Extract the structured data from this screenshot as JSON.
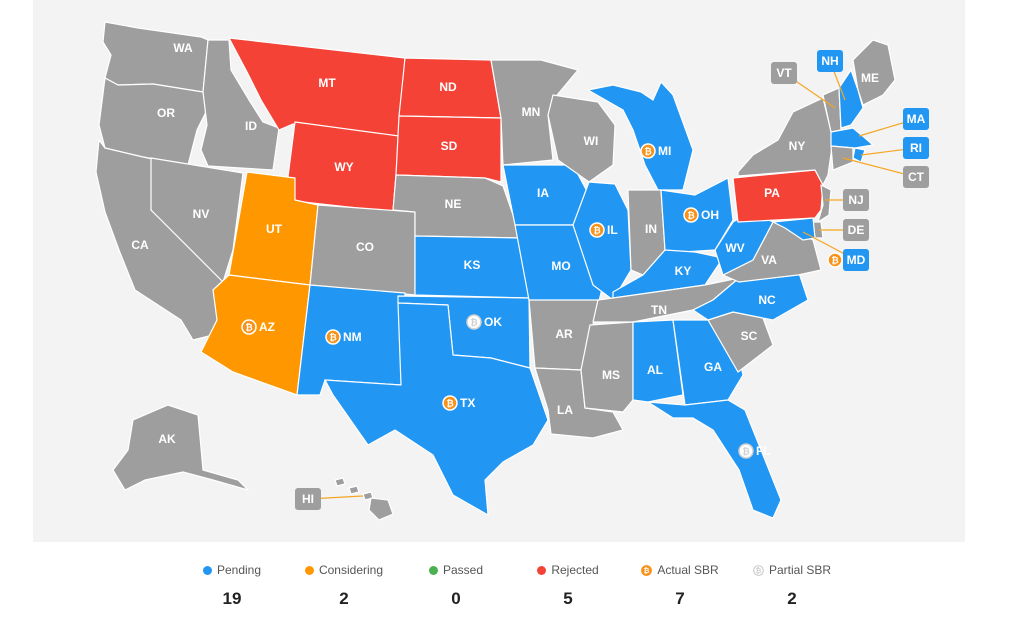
{
  "colors": {
    "pending": "#2196f3",
    "considering": "#ff9800",
    "passed": "#4caf50",
    "rejected": "#f44336",
    "none": "#9e9e9e",
    "actual_sbr": "#f7931a",
    "partial_sbr": "#d0d0d0"
  },
  "states": {
    "WA": {
      "label": "WA",
      "status": "none"
    },
    "OR": {
      "label": "OR",
      "status": "none"
    },
    "CA": {
      "label": "CA",
      "status": "none"
    },
    "NV": {
      "label": "NV",
      "status": "none"
    },
    "ID": {
      "label": "ID",
      "status": "none"
    },
    "MT": {
      "label": "MT",
      "status": "rejected"
    },
    "WY": {
      "label": "WY",
      "status": "rejected"
    },
    "UT": {
      "label": "UT",
      "status": "considering"
    },
    "AZ": {
      "label": "AZ",
      "status": "considering",
      "sbr": "actual"
    },
    "CO": {
      "label": "CO",
      "status": "none"
    },
    "NM": {
      "label": "NM",
      "status": "pending",
      "sbr": "actual"
    },
    "ND": {
      "label": "ND",
      "status": "rejected"
    },
    "SD": {
      "label": "SD",
      "status": "rejected"
    },
    "NE": {
      "label": "NE",
      "status": "none"
    },
    "KS": {
      "label": "KS",
      "status": "pending"
    },
    "OK": {
      "label": "OK",
      "status": "pending",
      "sbr": "partial"
    },
    "TX": {
      "label": "TX",
      "status": "pending",
      "sbr": "actual"
    },
    "MN": {
      "label": "MN",
      "status": "none"
    },
    "IA": {
      "label": "IA",
      "status": "pending"
    },
    "MO": {
      "label": "MO",
      "status": "pending"
    },
    "AR": {
      "label": "AR",
      "status": "none"
    },
    "LA": {
      "label": "LA",
      "status": "none"
    },
    "WI": {
      "label": "WI",
      "status": "none"
    },
    "IL": {
      "label": "IL",
      "status": "pending",
      "sbr": "actual"
    },
    "MI": {
      "label": "MI",
      "status": "pending",
      "sbr": "actual"
    },
    "IN": {
      "label": "IN",
      "status": "none"
    },
    "OH": {
      "label": "OH",
      "status": "pending",
      "sbr": "actual"
    },
    "KY": {
      "label": "KY",
      "status": "pending"
    },
    "TN": {
      "label": "TN",
      "status": "none"
    },
    "MS": {
      "label": "MS",
      "status": "none"
    },
    "AL": {
      "label": "AL",
      "status": "pending"
    },
    "GA": {
      "label": "GA",
      "status": "pending"
    },
    "FL": {
      "label": "FL",
      "status": "pending",
      "sbr": "partial"
    },
    "SC": {
      "label": "SC",
      "status": "none"
    },
    "NC": {
      "label": "NC",
      "status": "pending"
    },
    "VA": {
      "label": "VA",
      "status": "none"
    },
    "WV": {
      "label": "WV",
      "status": "pending"
    },
    "PA": {
      "label": "PA",
      "status": "rejected"
    },
    "NY": {
      "label": "NY",
      "status": "none"
    },
    "ME": {
      "label": "ME",
      "status": "none"
    },
    "VT": {
      "label": "VT",
      "status": "none"
    },
    "NH": {
      "label": "NH",
      "status": "pending"
    },
    "MA": {
      "label": "MA",
      "status": "pending"
    },
    "RI": {
      "label": "RI",
      "status": "pending"
    },
    "CT": {
      "label": "CT",
      "status": "none"
    },
    "NJ": {
      "label": "NJ",
      "status": "none"
    },
    "DE": {
      "label": "DE",
      "status": "none"
    },
    "MD": {
      "label": "MD",
      "status": "pending",
      "sbr": "actual"
    },
    "AK": {
      "label": "AK",
      "status": "none"
    },
    "HI": {
      "label": "HI",
      "status": "none"
    }
  },
  "legend": [
    {
      "label": "Pending",
      "count": "19",
      "marker": "pending"
    },
    {
      "label": "Considering",
      "count": "2",
      "marker": "considering"
    },
    {
      "label": "Passed",
      "count": "0",
      "marker": "passed"
    },
    {
      "label": "Rejected",
      "count": "5",
      "marker": "rejected"
    },
    {
      "label": "Actual SBR",
      "count": "7",
      "marker": "bitcoin-icon"
    },
    {
      "label": "Partial SBR",
      "count": "2",
      "marker": "bitcoin-outline-icon"
    }
  ]
}
